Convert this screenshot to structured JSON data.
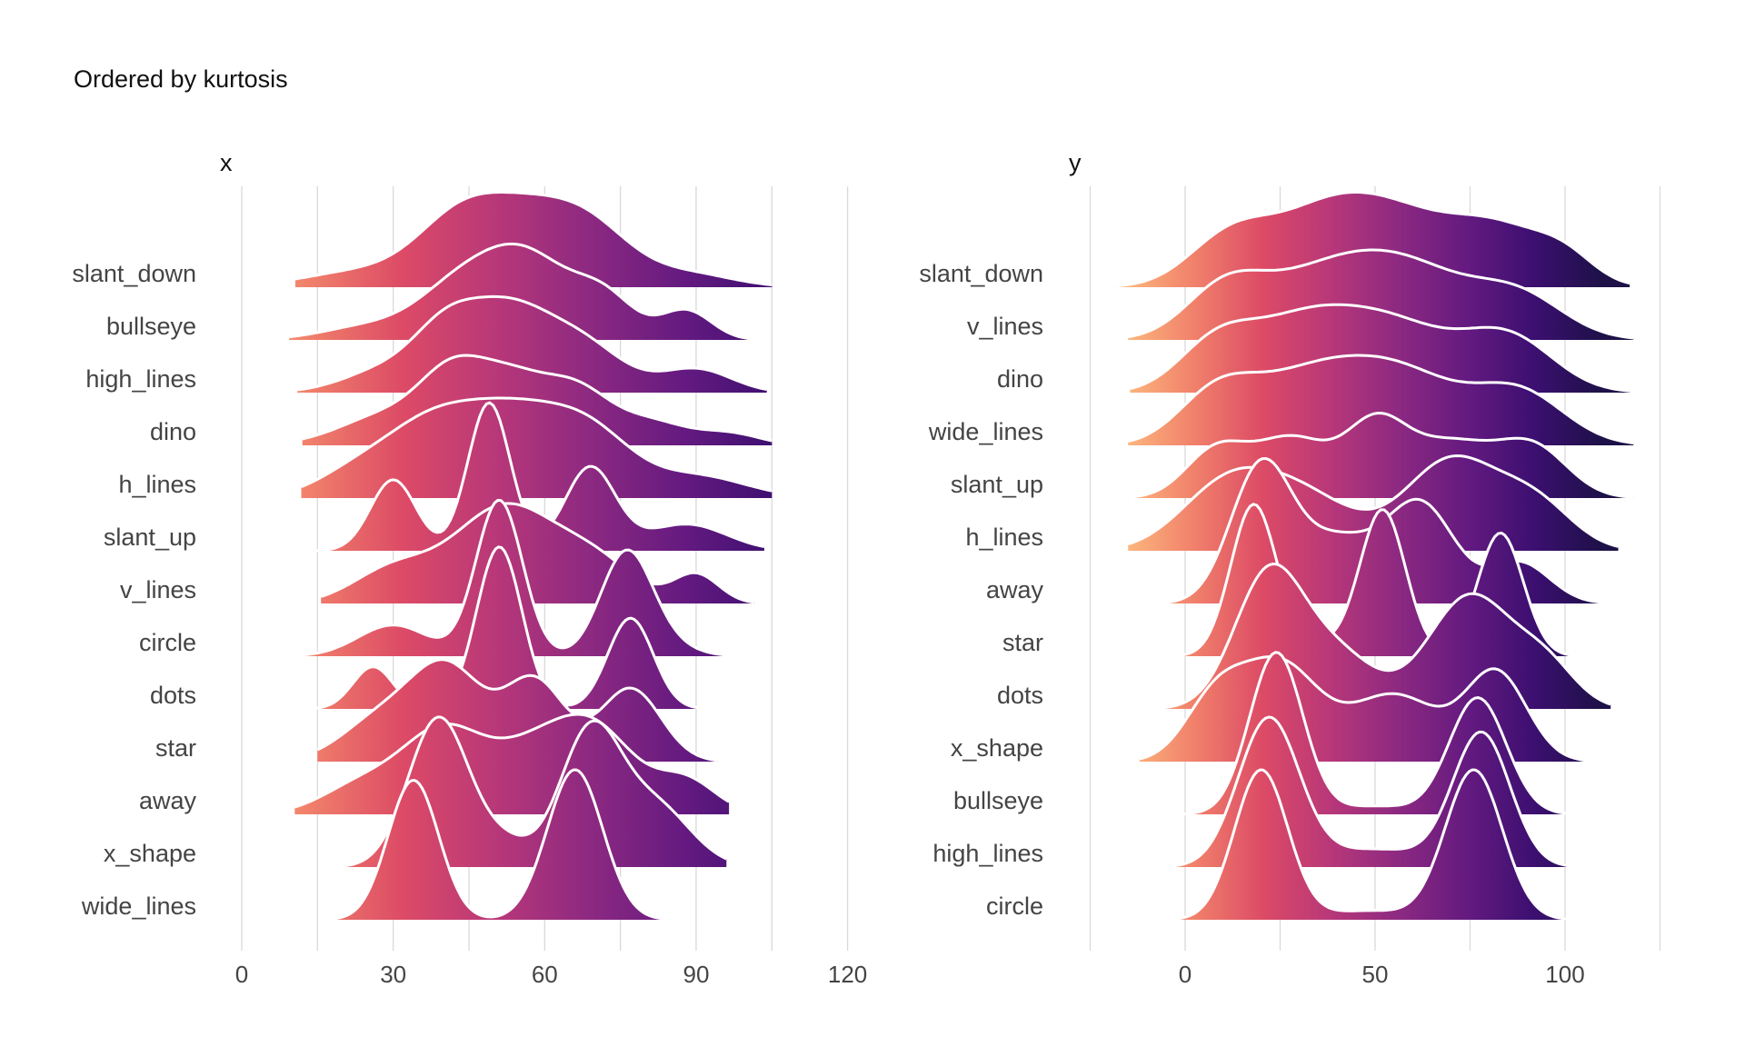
{
  "title": "Ordered by kurtosis",
  "colors": {
    "gradient": [
      "#fcb57d",
      "#f07f6a",
      "#dc4a66",
      "#b73779",
      "#8c2981",
      "#641a80",
      "#3b0f70",
      "#1d1147"
    ],
    "outline": "#ffffff",
    "grid": "#d9d9d9",
    "text": "#444444"
  },
  "chart_data": [
    {
      "type": "ridgeline",
      "panel_title": "x",
      "xlim": [
        -5,
        125
      ],
      "xticks": [
        0,
        30,
        60,
        90,
        120
      ],
      "gradient_range": [
        -5,
        125
      ],
      "categories": [
        "slant_down",
        "bullseye",
        "high_lines",
        "dino",
        "h_lines",
        "slant_up",
        "v_lines",
        "circle",
        "dots",
        "star",
        "away",
        "x_shape",
        "wide_lines"
      ],
      "series": [
        {
          "label": "slant_down",
          "range": [
            10.6,
            105
          ],
          "scale": 0.95,
          "bumps": [
            [
              25,
              12,
              0.22
            ],
            [
              42,
              8,
              0.55
            ],
            [
              56,
              11,
              1.0
            ],
            [
              70,
              8,
              0.48
            ],
            [
              88,
              9,
              0.18
            ]
          ]
        },
        {
          "label": "bullseye",
          "range": [
            9.4,
            102.5
          ],
          "scale": 0.96,
          "bumps": [
            [
              25,
              9,
              0.16
            ],
            [
              42,
              8,
              0.5
            ],
            [
              56,
              9,
              1.0
            ],
            [
              72,
              6,
              0.45
            ],
            [
              88,
              5,
              0.35
            ]
          ]
        },
        {
          "label": "high_lines",
          "range": [
            11,
            104
          ],
          "scale": 0.96,
          "bumps": [
            [
              30,
              9,
              0.3
            ],
            [
              40,
              6,
              0.42
            ],
            [
              52,
              9,
              1.0
            ],
            [
              68,
              8,
              0.5
            ],
            [
              90,
              7,
              0.28
            ]
          ]
        },
        {
          "label": "dino",
          "range": [
            12,
            105
          ],
          "scale": 0.9,
          "bumps": [
            [
              30,
              10,
              0.45
            ],
            [
              41,
              6,
              0.55
            ],
            [
              53,
              9,
              1.0
            ],
            [
              67,
              6,
              0.5
            ],
            [
              80,
              8,
              0.35
            ],
            [
              97,
              6,
              0.15
            ]
          ]
        },
        {
          "label": "h_lines",
          "range": [
            11.8,
            105
          ],
          "scale": 1.0,
          "bumps": [
            [
              22,
              8,
              0.25
            ],
            [
              36,
              9,
              0.6
            ],
            [
              54,
              12,
              1.0
            ],
            [
              70,
              8,
              0.45
            ],
            [
              90,
              10,
              0.25
            ]
          ]
        },
        {
          "label": "slant_up",
          "range": [
            11.8,
            103.5
          ],
          "scale": 1.48,
          "bumps": [
            [
              30,
              4.5,
              0.48
            ],
            [
              49,
              4.2,
              1.0
            ],
            [
              69,
              5,
              0.56
            ],
            [
              88,
              8,
              0.18
            ]
          ]
        },
        {
          "label": "v_lines",
          "range": [
            15.7,
            101.5
          ],
          "scale": 1.0,
          "bumps": [
            [
              30,
              8,
              0.35
            ],
            [
              52,
              10,
              1.0
            ],
            [
              70,
              8,
              0.4
            ],
            [
              90,
              4.5,
              0.3
            ]
          ]
        },
        {
          "label": "circle",
          "range": [
            11.8,
            98.3
          ],
          "scale": 1.56,
          "bumps": [
            [
              30,
              7,
              0.2
            ],
            [
              51,
              4.6,
              1.0
            ],
            [
              76,
              5,
              0.62
            ],
            [
              82,
              6,
              0.1
            ]
          ]
        },
        {
          "label": "dots",
          "range": [
            12,
            92
          ],
          "scale": 1.62,
          "bumps": [
            [
              26,
              4,
              0.26
            ],
            [
              51,
              4.5,
              1.0
            ],
            [
              77,
              4.5,
              0.56
            ]
          ]
        },
        {
          "label": "star",
          "range": [
            15,
            94.3
          ],
          "scale": 1.02,
          "bumps": [
            [
              28,
              8,
              0.3
            ],
            [
              41,
              7,
              0.6
            ],
            [
              58,
              6,
              0.55
            ],
            [
              77,
              6,
              0.5
            ]
          ]
        },
        {
          "label": "away",
          "range": [
            10.5,
            96.5
          ],
          "scale": 1.0,
          "bumps": [
            [
              24,
              8,
              0.25
            ],
            [
              40,
              8,
              0.68
            ],
            [
              57,
              8,
              0.45
            ],
            [
              70,
              8,
              0.68
            ],
            [
              88,
              6,
              0.28
            ]
          ]
        },
        {
          "label": "x_shape",
          "range": [
            20.5,
            96
          ],
          "scale": 1.5,
          "bumps": [
            [
              39,
              6,
              1.0
            ],
            [
              52,
              5,
              0.15
            ],
            [
              69,
              6,
              0.9
            ],
            [
              82,
              7,
              0.4
            ]
          ]
        },
        {
          "label": "wide_lines",
          "range": [
            16,
            88.5
          ],
          "scale": 1.5,
          "bumps": [
            [
              34,
              5,
              0.93
            ],
            [
              66,
              5.5,
              1.0
            ]
          ]
        }
      ]
    },
    {
      "type": "ridgeline",
      "panel_title": "y",
      "xlim": [
        -25,
        125
      ],
      "xticks": [
        0,
        50,
        100
      ],
      "gradient_range": [
        -15,
        110
      ],
      "categories": [
        "slant_down",
        "v_lines",
        "dino",
        "wide_lines",
        "slant_up",
        "h_lines",
        "away",
        "star",
        "dots",
        "x_shape",
        "bullseye",
        "high_lines",
        "circle"
      ],
      "series": [
        {
          "label": "slant_down",
          "range": [
            -18,
            117
          ],
          "scale": 0.95,
          "bumps": [
            [
              12,
              11,
              0.55
            ],
            [
              35,
              13,
              0.65
            ],
            [
              55,
              14,
              0.7
            ],
            [
              82,
              13,
              0.62
            ],
            [
              100,
              8,
              0.25
            ]
          ]
        },
        {
          "label": "v_lines",
          "range": [
            -15,
            118
          ],
          "scale": 0.9,
          "bumps": [
            [
              10,
              10,
              0.6
            ],
            [
              35,
              18,
              0.9
            ],
            [
              60,
              16,
              0.85
            ],
            [
              88,
              12,
              0.6
            ]
          ]
        },
        {
          "label": "dino",
          "range": [
            -14.5,
            117
          ],
          "scale": 0.88,
          "bumps": [
            [
              8,
              10,
              0.6
            ],
            [
              30,
              14,
              0.85
            ],
            [
              55,
              15,
              0.85
            ],
            [
              85,
              12,
              0.72
            ]
          ]
        },
        {
          "label": "wide_lines",
          "range": [
            -15,
            118
          ],
          "scale": 0.9,
          "bumps": [
            [
              8,
              10,
              0.6
            ],
            [
              32,
              16,
              0.9
            ],
            [
              58,
              15,
              0.85
            ],
            [
              88,
              12,
              0.7
            ]
          ]
        },
        {
          "label": "slant_up",
          "range": [
            -15,
            118
          ],
          "scale": 0.85,
          "bumps": [
            [
              8,
              8,
              0.55
            ],
            [
              28,
              10,
              0.7
            ],
            [
              50,
              8,
              0.78
            ],
            [
              70,
              12,
              0.65
            ],
            [
              92,
              9,
              0.55
            ]
          ]
        },
        {
          "label": "h_lines",
          "range": [
            -15,
            114
          ],
          "scale": 0.95,
          "bumps": [
            [
              10,
              12,
              0.55
            ],
            [
              30,
              14,
              0.55
            ],
            [
              70,
              12,
              0.88
            ],
            [
              92,
              10,
              0.45
            ]
          ]
        },
        {
          "label": "away",
          "range": [
            -18,
            113
          ],
          "scale": 1.45,
          "bumps": [
            [
              20,
              8,
              1.0
            ],
            [
              40,
              10,
              0.45
            ],
            [
              62,
              9,
              0.72
            ],
            [
              88,
              8,
              0.3
            ]
          ]
        },
        {
          "label": "star",
          "range": [
            -8.5,
            115
          ],
          "scale": 1.52,
          "bumps": [
            [
              18,
              6,
              1.0
            ],
            [
              52,
              6,
              0.97
            ],
            [
              83,
              6,
              0.82
            ],
            [
              34,
              8,
              0.08
            ]
          ]
        },
        {
          "label": "dots",
          "range": [
            -10,
            112
          ],
          "scale": 1.45,
          "bumps": [
            [
              22,
              9,
              1.0
            ],
            [
              40,
              10,
              0.4
            ],
            [
              75,
              11,
              0.85
            ],
            [
              95,
              8,
              0.3
            ]
          ]
        },
        {
          "label": "x_shape",
          "range": [
            -12,
            115
          ],
          "scale": 1.05,
          "bumps": [
            [
              8,
              8,
              0.5
            ],
            [
              25,
              10,
              0.78
            ],
            [
              55,
              12,
              0.55
            ],
            [
              82,
              8,
              0.72
            ]
          ]
        },
        {
          "label": "bullseye",
          "range": [
            -13,
            109.5
          ],
          "scale": 1.62,
          "bumps": [
            [
              24,
              7,
              1.0
            ],
            [
              77,
              7.5,
              0.72
            ],
            [
              50,
              10,
              0.05
            ]
          ]
        },
        {
          "label": "high_lines",
          "range": [
            -7,
            109
          ],
          "scale": 1.5,
          "bumps": [
            [
              22,
              8,
              1.0
            ],
            [
              78,
              7.5,
              0.9
            ],
            [
              50,
              14,
              0.12
            ]
          ]
        },
        {
          "label": "circle",
          "range": [
            -9,
            106
          ],
          "scale": 1.5,
          "bumps": [
            [
              20,
              7,
              1.0
            ],
            [
              76,
              7.5,
              1.0
            ],
            [
              48,
              12,
              0.06
            ]
          ]
        }
      ]
    }
  ]
}
